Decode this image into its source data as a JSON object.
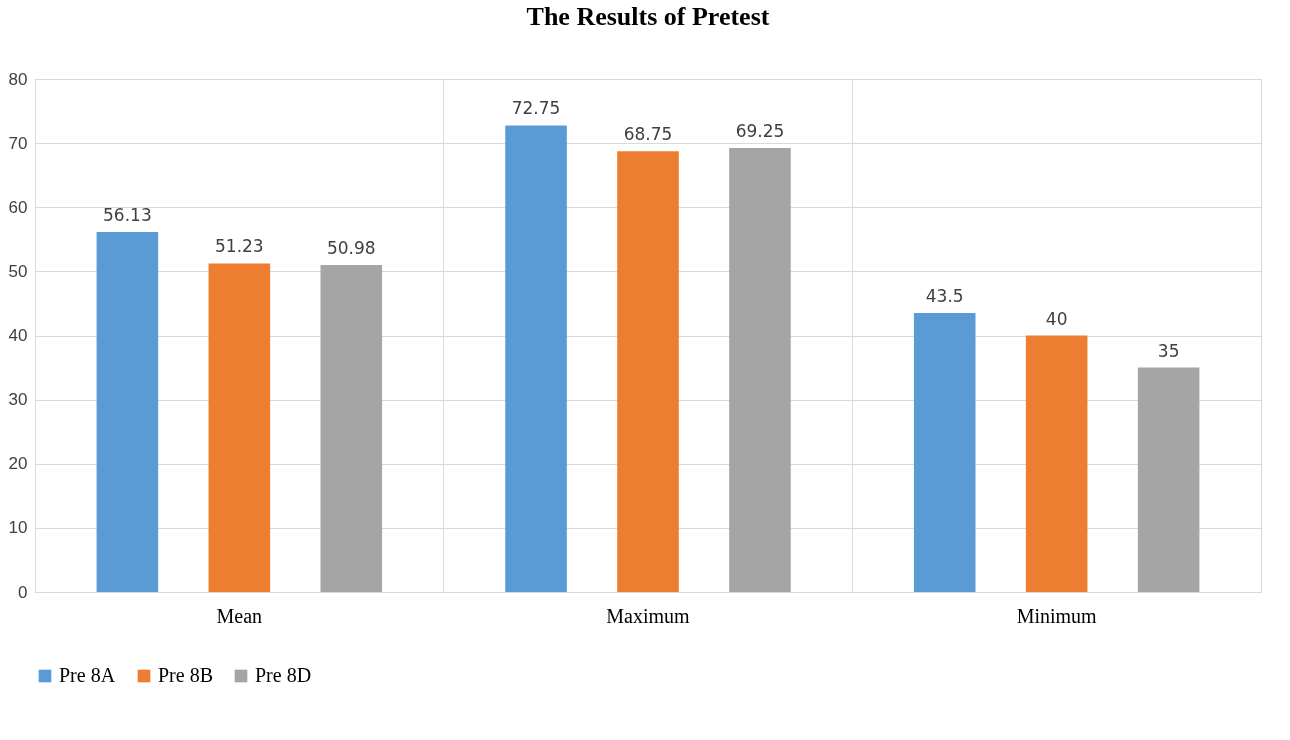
{
  "chart_data": {
    "type": "bar",
    "title": "The Results of Pretest",
    "categories": [
      "Mean",
      "Maximum",
      "Minimum"
    ],
    "series": [
      {
        "name": "Pre 8A",
        "color": "#5b9bd5",
        "values": [
          56.13,
          72.75,
          43.5
        ]
      },
      {
        "name": "Pre 8B",
        "color": "#ed7d31",
        "values": [
          51.23,
          68.75,
          40
        ]
      },
      {
        "name": "Pre 8D",
        "color": "#a5a5a5",
        "values": [
          50.98,
          69.25,
          35
        ]
      }
    ],
    "ylim": [
      0,
      80
    ],
    "yticks": [
      0,
      10,
      20,
      30,
      40,
      50,
      60,
      70,
      80
    ],
    "grid": true,
    "legend": "bottom",
    "data_labels": true
  }
}
